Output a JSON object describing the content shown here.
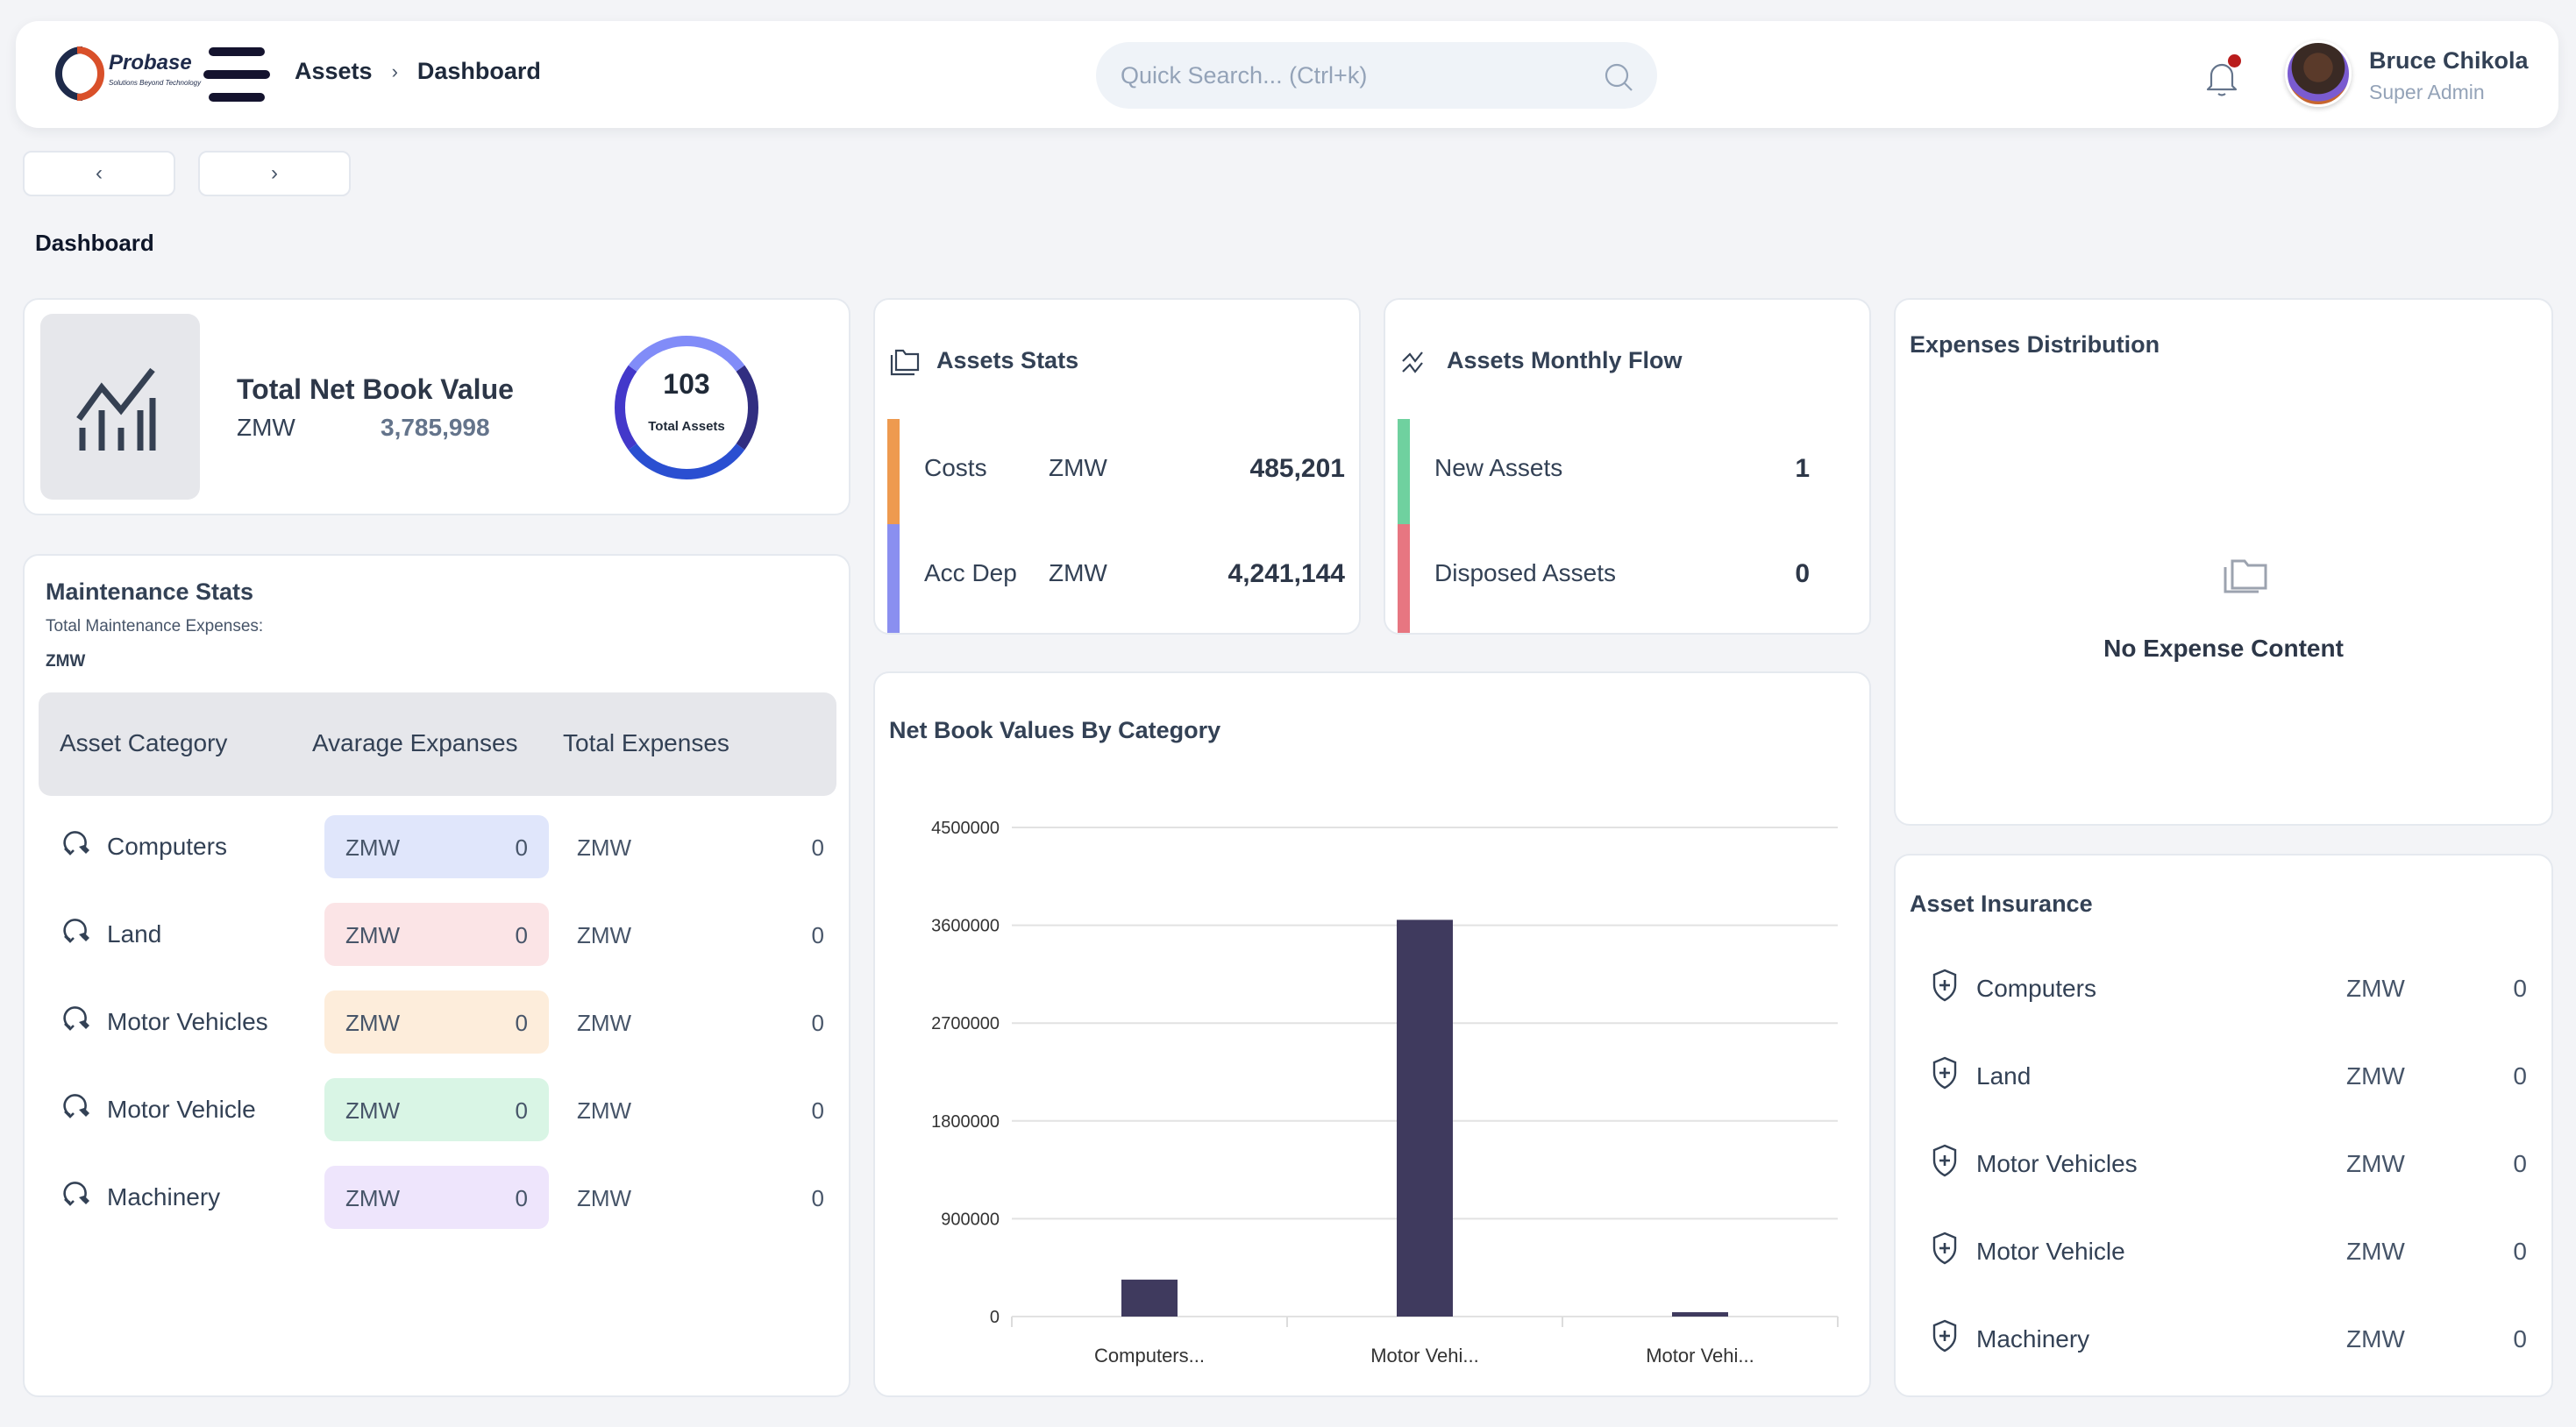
{
  "header": {
    "logo_text": "Probase",
    "logo_tagline": "Solutions Beyond Technology",
    "breadcrumb": [
      "Assets",
      "Dashboard"
    ],
    "breadcrumb_separator": "›",
    "search_placeholder": "Quick Search... (Ctrl+k)",
    "user_name": "Bruce Chikola",
    "user_role": "Super Admin",
    "notification_dot_color": "#b91c1c"
  },
  "nav": {
    "back": "‹",
    "forward": "›"
  },
  "page_title": "Dashboard",
  "net_book": {
    "title": "Total Net Book Value",
    "currency": "ZMW",
    "value": "3,785,998",
    "total_assets": "103",
    "total_assets_label": "Total Assets",
    "donut_colors": [
      "#4338ca",
      "#818cf8",
      "#312e81",
      "#2a4fd1"
    ]
  },
  "assets_stats": {
    "title": "Assets Stats",
    "rows": [
      {
        "label": "Costs",
        "currency": "ZMW",
        "value": "485,201",
        "color": "#ee9a4f"
      },
      {
        "label": "Acc Dep",
        "currency": "ZMW",
        "value": "4,241,144",
        "color": "#8a8ff0"
      }
    ]
  },
  "monthly_flow": {
    "title": "Assets Monthly Flow",
    "rows": [
      {
        "label": "New Assets",
        "value": "1",
        "color": "#6fd19f"
      },
      {
        "label": "Disposed Assets",
        "value": "0",
        "color": "#e77681"
      }
    ]
  },
  "expenses": {
    "title": "Expenses Distribution",
    "empty_text": "No Expense Content"
  },
  "maintenance": {
    "title": "Maintenance Stats",
    "subtitle": "Total Maintenance Expenses:",
    "currency": "ZMW",
    "columns": [
      "Asset Category",
      "Avarage Expanses",
      "Total Expenses"
    ],
    "rows": [
      {
        "name": "Computers",
        "avg_currency": "ZMW",
        "avg": "0",
        "total_currency": "ZMW",
        "total": "0",
        "color": "#e0e6fb"
      },
      {
        "name": "Land",
        "avg_currency": "ZMW",
        "avg": "0",
        "total_currency": "ZMW",
        "total": "0",
        "color": "#fbe4e6"
      },
      {
        "name": "Motor Vehicles",
        "avg_currency": "ZMW",
        "avg": "0",
        "total_currency": "ZMW",
        "total": "0",
        "color": "#fdeddb"
      },
      {
        "name": "Motor Vehicle",
        "avg_currency": "ZMW",
        "avg": "0",
        "total_currency": "ZMW",
        "total": "0",
        "color": "#d9f5e5"
      },
      {
        "name": "Machinery",
        "avg_currency": "ZMW",
        "avg": "0",
        "total_currency": "ZMW",
        "total": "0",
        "color": "#eee5fc"
      }
    ]
  },
  "insurance": {
    "title": "Asset Insurance",
    "rows": [
      {
        "name": "Computers",
        "currency": "ZMW",
        "value": "0"
      },
      {
        "name": "Land",
        "currency": "ZMW",
        "value": "0"
      },
      {
        "name": "Motor Vehicles",
        "currency": "ZMW",
        "value": "0"
      },
      {
        "name": "Motor Vehicle",
        "currency": "ZMW",
        "value": "0"
      },
      {
        "name": "Machinery",
        "currency": "ZMW",
        "value": "0"
      }
    ]
  },
  "chart_data": {
    "type": "bar",
    "title": "Net Book Values By Category",
    "categories": [
      "Computers...",
      "Motor Vehi...",
      "Motor Vehi..."
    ],
    "values": [
      340000,
      3650000,
      40000
    ],
    "yticks": [
      0,
      900000,
      1800000,
      2700000,
      3600000,
      4500000
    ],
    "ylim": [
      0,
      4500000
    ],
    "xlabel": "",
    "ylabel": "",
    "grid": true,
    "bar_color": "#3f3a5e"
  }
}
